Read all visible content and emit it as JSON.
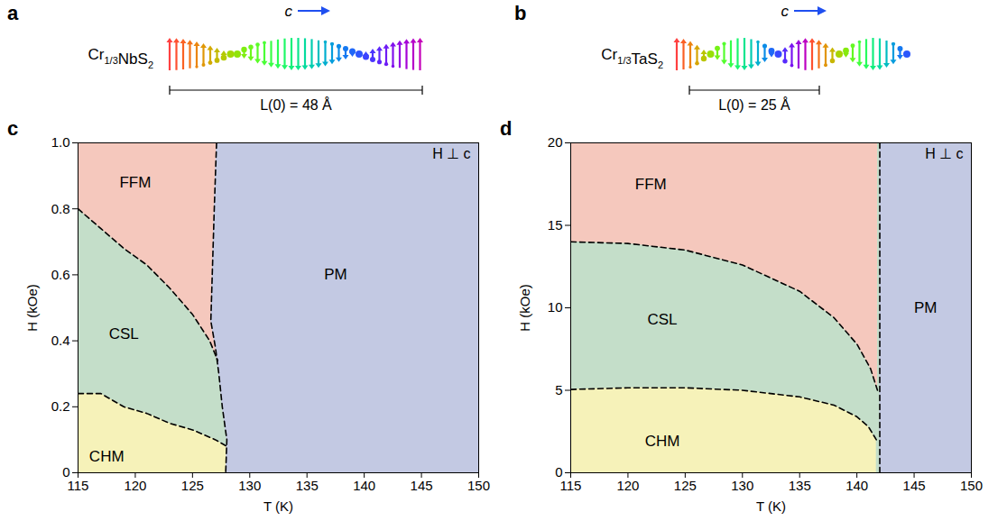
{
  "schematics": [
    {
      "panel": "a",
      "compound": "Cr1/3NbS2",
      "direction_label": "c",
      "length_label": "L(0) = 48 Å"
    },
    {
      "panel": "b",
      "compound": "Cr1/3TaS2",
      "direction_label": "c",
      "length_label": "L(0) = 25 Å"
    }
  ],
  "chart_data": [
    {
      "type": "line",
      "panel": "c",
      "xlabel": "T (K)",
      "ylabel": "H (kOe)",
      "xlim": [
        115,
        150
      ],
      "ylim": [
        0,
        1
      ],
      "xticks": [
        115,
        120,
        125,
        130,
        135,
        140,
        145,
        150
      ],
      "yticks": [
        0,
        0.2,
        0.4,
        0.6,
        0.8,
        {
          "value": 1,
          "label": "1.0"
        }
      ],
      "series": [
        {
          "color": "#000000",
          "line_style": "dashed",
          "x": [
            115,
            117,
            119,
            121,
            123,
            125,
            127,
            128
          ],
          "y": [
            0.24,
            0.24,
            0.2,
            0.18,
            0.15,
            0.13,
            0.1,
            0.08
          ]
        },
        {
          "color": "#000000",
          "line_style": "dashed",
          "x": [
            115,
            117,
            119,
            121,
            123,
            125,
            126.5,
            127.2
          ],
          "y": [
            0.8,
            0.74,
            0.68,
            0.63,
            0.56,
            0.48,
            0.4,
            0.34
          ]
        },
        {
          "color": "#000000",
          "line_style": "dashed",
          "x": [
            127.1,
            126.9,
            126.6,
            127.0,
            127.3,
            127.6,
            128.0,
            127.9
          ],
          "y": [
            1.0,
            0.8,
            0.46,
            0.38,
            0.3,
            0.2,
            0.1,
            0
          ]
        }
      ],
      "regions": [
        {
          "label": "CHM",
          "color": "#f6f2b9",
          "x": 117.5,
          "y": 0.05
        },
        {
          "label": "CSL",
          "color": "#c4dec9",
          "x": 119,
          "y": 0.42
        },
        {
          "label": "FFM",
          "color": "#f5c8bd",
          "x": 120,
          "y": 0.88
        },
        {
          "label": "PM",
          "color": "#c3c9e3",
          "x": 137.5,
          "y": 0.6
        }
      ],
      "annotations": [
        {
          "text": "H ⊥ c",
          "x": 149.3,
          "y": 0.965
        }
      ]
    },
    {
      "type": "line",
      "panel": "d",
      "xlabel": "T (K)",
      "ylabel": "H (kOe)",
      "xlim": [
        115,
        150
      ],
      "ylim": [
        0,
        20
      ],
      "xticks": [
        115,
        120,
        125,
        130,
        135,
        140,
        145,
        150
      ],
      "yticks": [
        0,
        5,
        10,
        15,
        20
      ],
      "series": [
        {
          "color": "#000000",
          "line_style": "dashed",
          "x": [
            115,
            120,
            125,
            130,
            135,
            138,
            140,
            141,
            141.7
          ],
          "y": [
            5.05,
            5.15,
            5.15,
            5.0,
            4.6,
            4.1,
            3.4,
            2.8,
            2.0
          ]
        },
        {
          "color": "#000000",
          "line_style": "dashed",
          "x": [
            115,
            120,
            125,
            130,
            135,
            138,
            140,
            141.2,
            141.8
          ],
          "y": [
            14.0,
            13.9,
            13.5,
            12.6,
            11.0,
            9.4,
            7.8,
            6.3,
            5.0
          ]
        },
        {
          "color": "#000000",
          "line_style": "dashed",
          "x": [
            142,
            142
          ],
          "y": [
            20,
            0
          ]
        }
      ],
      "regions": [
        {
          "label": "CHM",
          "color": "#f6f2b9",
          "x": 123,
          "y": 1.9
        },
        {
          "label": "CSL",
          "color": "#c4dec9",
          "x": 123,
          "y": 9.3
        },
        {
          "label": "FFM",
          "color": "#f5c8bd",
          "x": 122,
          "y": 17.5
        },
        {
          "label": "PM",
          "color": "#c3c9e3",
          "x": 146,
          "y": 10
        }
      ],
      "annotations": [
        {
          "text": "H ⊥ c",
          "x": 149.3,
          "y": 19.3
        }
      ]
    }
  ]
}
